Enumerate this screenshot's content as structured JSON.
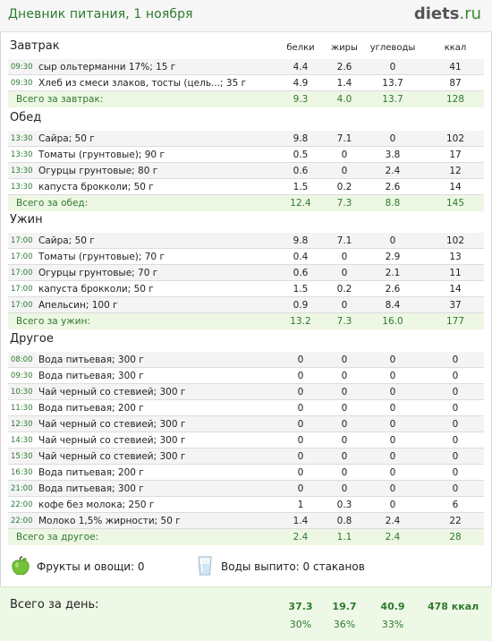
{
  "header": {
    "title": "Дневник питания, 1 ноября",
    "logo_main": "diets",
    "logo_domain": ".ru"
  },
  "columns": {
    "protein": "белки",
    "fat": "жиры",
    "carbs": "углеводы",
    "kcal": "ккал"
  },
  "sections": [
    {
      "title": "Завтрак",
      "rows": [
        {
          "time": "09:30",
          "food": "сыр ольтерманни 17%; 15 г",
          "protein": "4.4",
          "fat": "2.6",
          "carbs": "0",
          "kcal": "41"
        },
        {
          "time": "09:30",
          "food": "Хлеб из смеси злаков, тосты (цель...; 35 г",
          "protein": "4.9",
          "fat": "1.4",
          "carbs": "13.7",
          "kcal": "87"
        }
      ],
      "total": {
        "label": "Всего за завтрак:",
        "protein": "9.3",
        "fat": "4.0",
        "carbs": "13.7",
        "kcal": "128"
      }
    },
    {
      "title": "Обед",
      "rows": [
        {
          "time": "13:30",
          "food": "Сайра; 50 г",
          "protein": "9.8",
          "fat": "7.1",
          "carbs": "0",
          "kcal": "102"
        },
        {
          "time": "13:30",
          "food": "Томаты (грунтовые); 90 г",
          "protein": "0.5",
          "fat": "0",
          "carbs": "3.8",
          "kcal": "17"
        },
        {
          "time": "13:30",
          "food": "Огурцы грунтовые; 80 г",
          "protein": "0.6",
          "fat": "0",
          "carbs": "2.4",
          "kcal": "12"
        },
        {
          "time": "13:30",
          "food": "капуста брокколи; 50 г",
          "protein": "1.5",
          "fat": "0.2",
          "carbs": "2.6",
          "kcal": "14"
        }
      ],
      "total": {
        "label": "Всего за обед:",
        "protein": "12.4",
        "fat": "7.3",
        "carbs": "8.8",
        "kcal": "145"
      }
    },
    {
      "title": "Ужин",
      "rows": [
        {
          "time": "17:00",
          "food": "Сайра; 50 г",
          "protein": "9.8",
          "fat": "7.1",
          "carbs": "0",
          "kcal": "102"
        },
        {
          "time": "17:00",
          "food": "Томаты (грунтовые); 70 г",
          "protein": "0.4",
          "fat": "0",
          "carbs": "2.9",
          "kcal": "13"
        },
        {
          "time": "17:00",
          "food": "Огурцы грунтовые; 70 г",
          "protein": "0.6",
          "fat": "0",
          "carbs": "2.1",
          "kcal": "11"
        },
        {
          "time": "17:00",
          "food": "капуста брокколи; 50 г",
          "protein": "1.5",
          "fat": "0.2",
          "carbs": "2.6",
          "kcal": "14"
        },
        {
          "time": "17:00",
          "food": "Апельсин; 100 г",
          "protein": "0.9",
          "fat": "0",
          "carbs": "8.4",
          "kcal": "37"
        }
      ],
      "total": {
        "label": "Всего за ужин:",
        "protein": "13.2",
        "fat": "7.3",
        "carbs": "16.0",
        "kcal": "177"
      }
    },
    {
      "title": "Другое",
      "rows": [
        {
          "time": "08:00",
          "food": "Вода питьевая; 300 г",
          "protein": "0",
          "fat": "0",
          "carbs": "0",
          "kcal": "0"
        },
        {
          "time": "09:30",
          "food": "Вода питьевая; 300 г",
          "protein": "0",
          "fat": "0",
          "carbs": "0",
          "kcal": "0"
        },
        {
          "time": "10:30",
          "food": "Чай черный со стевией; 300 г",
          "protein": "0",
          "fat": "0",
          "carbs": "0",
          "kcal": "0"
        },
        {
          "time": "11:30",
          "food": "Вода питьевая; 200 г",
          "protein": "0",
          "fat": "0",
          "carbs": "0",
          "kcal": "0"
        },
        {
          "time": "12:30",
          "food": "Чай черный со стевией; 300 г",
          "protein": "0",
          "fat": "0",
          "carbs": "0",
          "kcal": "0"
        },
        {
          "time": "14:30",
          "food": "Чай черный со стевией; 300 г",
          "protein": "0",
          "fat": "0",
          "carbs": "0",
          "kcal": "0"
        },
        {
          "time": "15:30",
          "food": "Чай черный со стевией; 300 г",
          "protein": "0",
          "fat": "0",
          "carbs": "0",
          "kcal": "0"
        },
        {
          "time": "16:30",
          "food": "Вода питьевая; 200 г",
          "protein": "0",
          "fat": "0",
          "carbs": "0",
          "kcal": "0"
        },
        {
          "time": "21:00",
          "food": "Вода питьевая; 300 г",
          "protein": "0",
          "fat": "0",
          "carbs": "0",
          "kcal": "0"
        },
        {
          "time": "22:00",
          "food": "кофе без молока; 250 г",
          "protein": "1",
          "fat": "0.3",
          "carbs": "0",
          "kcal": "6"
        },
        {
          "time": "22:00",
          "food": "Молоко 1,5% жирности; 50 г",
          "protein": "1.4",
          "fat": "0.8",
          "carbs": "2.4",
          "kcal": "22"
        }
      ],
      "total": {
        "label": "Всего за другое:",
        "protein": "2.4",
        "fat": "1.1",
        "carbs": "2.4",
        "kcal": "28"
      }
    }
  ],
  "extras": {
    "fruit_label": "Фрукты и овощи: 0",
    "water_label": "Воды выпито: 0 стаканов",
    "fruit_icon": "green-apple-icon",
    "water_icon": "water-glass-icon"
  },
  "day_total": {
    "label": "Всего за день:",
    "protein": "37.3",
    "fat": "19.7",
    "carbs": "40.9",
    "kcal": "478 ккал",
    "protein_pct": "30%",
    "fat_pct": "36%",
    "carbs_pct": "33%"
  },
  "colors": {
    "accent_green": "#2e7a2e",
    "total_bg": "#edf7e4",
    "alt_row_bg": "#f4f4f4"
  }
}
